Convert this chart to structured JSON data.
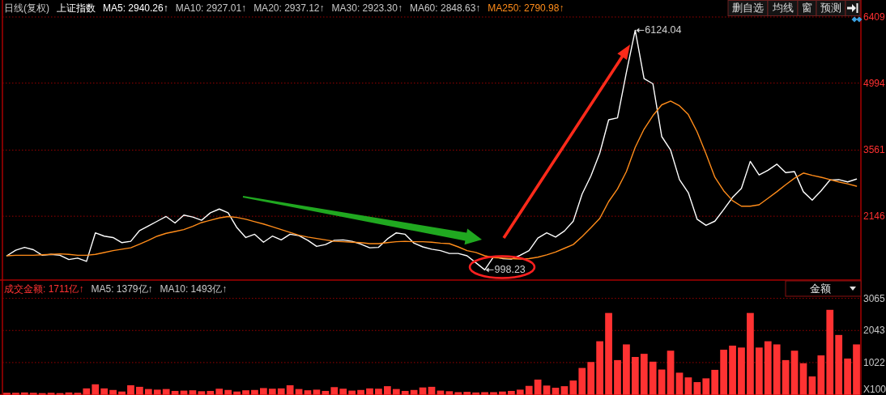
{
  "chart_data": [
    {
      "type": "line",
      "title": "日线(复权)",
      "subtitle": "上证指数",
      "categories": [
        null,
        null,
        null,
        null,
        null,
        null,
        null,
        null,
        null,
        null,
        null,
        null,
        null,
        null,
        null,
        null,
        null,
        null,
        null,
        null,
        null,
        null,
        null,
        null,
        null,
        null,
        null,
        null,
        null,
        null,
        null,
        null,
        null,
        null,
        null,
        null,
        null,
        null,
        null,
        null,
        null,
        null,
        null,
        null,
        null,
        null,
        null,
        null,
        null,
        null,
        null,
        null,
        null,
        null,
        null,
        null,
        null,
        null,
        null,
        null,
        null,
        null,
        null,
        null,
        null,
        null,
        null,
        null,
        null,
        null,
        null,
        null,
        null,
        null,
        null,
        null,
        null,
        null,
        null,
        null,
        null,
        null,
        null,
        null,
        null,
        null,
        null,
        null,
        null,
        null,
        null,
        null,
        null,
        null,
        null,
        null,
        null
      ],
      "series": [
        {
          "name": "MA5: 2940.26↑",
          "color": "#ffffff",
          "values": [
            1300,
            1420,
            1480,
            1430,
            1310,
            1330,
            1310,
            1220,
            1250,
            1180,
            1790,
            1720,
            1690,
            1580,
            1610,
            1840,
            1940,
            2040,
            2140,
            2000,
            2170,
            2130,
            2060,
            2220,
            2300,
            2220,
            1900,
            1690,
            1760,
            1590,
            1720,
            1640,
            1760,
            1730,
            1630,
            1500,
            1540,
            1630,
            1640,
            1610,
            1550,
            1470,
            1480,
            1660,
            1790,
            1760,
            1570,
            1490,
            1440,
            1410,
            1350,
            1350,
            1300,
            1150,
            998.23,
            1280,
            1240,
            1230,
            1310,
            1410,
            1680,
            1790,
            1700,
            1830,
            2040,
            2620,
            3010,
            3500,
            4210,
            4250,
            5220,
            6124.04,
            5090,
            4980,
            3850,
            3560,
            2930,
            2650,
            2080,
            1950,
            2040,
            2290,
            2550,
            2740,
            3320,
            3030,
            3130,
            3260,
            3080,
            3100,
            2670,
            2490,
            2690,
            2920,
            2930,
            2880,
            2940
          ],
          "value_labels": [
            null,
            null,
            null,
            null,
            null,
            null,
            null,
            null,
            null,
            null,
            null,
            null,
            null,
            null,
            null,
            null,
            null,
            null,
            null,
            null,
            null,
            null,
            null,
            null,
            null,
            null,
            null,
            null,
            null,
            null,
            null,
            null,
            null,
            null,
            null,
            null,
            null,
            null,
            null,
            null,
            null,
            null,
            null,
            null,
            null,
            null,
            null,
            null,
            null,
            null,
            null,
            null,
            null,
            null,
            "998.23",
            null,
            null,
            null,
            null,
            null,
            null,
            null,
            null,
            null,
            null,
            null,
            null,
            null,
            null,
            null,
            null,
            "6124.04",
            null,
            null,
            null,
            null,
            null,
            null,
            null,
            null,
            null,
            null,
            null,
            null,
            null,
            null,
            null,
            null,
            null,
            null,
            null,
            null,
            null,
            null,
            null,
            null,
            null
          ]
        },
        {
          "name": "MA250: 2790.98↑",
          "color": "#ff8c1a",
          "values": [
            1300,
            1310,
            1310,
            1310,
            1320,
            1330,
            1340,
            1330,
            1310,
            1310,
            1330,
            1370,
            1410,
            1440,
            1470,
            1550,
            1630,
            1720,
            1780,
            1820,
            1860,
            1930,
            2010,
            2060,
            2110,
            2140,
            2120,
            2080,
            2030,
            1980,
            1920,
            1860,
            1800,
            1740,
            1700,
            1670,
            1640,
            1610,
            1600,
            1590,
            1580,
            1560,
            1560,
            1580,
            1600,
            1610,
            1600,
            1600,
            1590,
            1570,
            1560,
            1490,
            1410,
            1370,
            1300,
            1260,
            1250,
            1240,
            1230,
            1240,
            1270,
            1320,
            1380,
            1460,
            1540,
            1710,
            1900,
            2100,
            2460,
            2730,
            3100,
            3620,
            4010,
            4300,
            4530,
            4610,
            4510,
            4320,
            3950,
            3480,
            2980,
            2690,
            2480,
            2360,
            2360,
            2390,
            2530,
            2670,
            2820,
            2960,
            3070,
            3020,
            2980,
            2930,
            2880,
            2840,
            2790
          ]
        }
      ],
      "annotations": [
        "MA10: 2927.01↑",
        "MA20: 2937.12↑",
        "MA30: 2923.30↑",
        "MA60: 2848.63↑"
      ],
      "ylim": [
        780,
        6409
      ],
      "yticks": [
        2146,
        3561,
        4994,
        6409
      ],
      "grid": "y",
      "legend": "top left",
      "tick_labels": "y"
    },
    {
      "type": "bar",
      "categories": [
        null,
        null,
        null,
        null,
        null,
        null,
        null,
        null,
        null,
        null,
        null,
        null,
        null,
        null,
        null,
        null,
        null,
        null,
        null,
        null,
        null,
        null,
        null,
        null,
        null,
        null,
        null,
        null,
        null,
        null,
        null,
        null,
        null,
        null,
        null,
        null,
        null,
        null,
        null,
        null,
        null,
        null,
        null,
        null,
        null,
        null,
        null,
        null,
        null,
        null,
        null,
        null,
        null,
        null,
        null,
        null,
        null,
        null,
        null,
        null,
        null,
        null,
        null,
        null,
        null,
        null,
        null,
        null,
        null,
        null,
        null,
        null,
        null,
        null,
        null,
        null,
        null,
        null,
        null,
        null,
        null,
        null,
        null,
        null,
        null,
        null,
        null,
        null,
        null,
        null,
        null,
        null,
        null,
        null,
        null,
        null,
        null
      ],
      "series": [
        {
          "name": "成交金额: 1711亿↑",
          "color": "#ff3232",
          "values": [
            60,
            60,
            70,
            60,
            50,
            60,
            50,
            70,
            60,
            200,
            330,
            200,
            150,
            100,
            300,
            250,
            180,
            160,
            180,
            120,
            130,
            140,
            110,
            120,
            190,
            150,
            100,
            140,
            150,
            210,
            190,
            200,
            300,
            180,
            140,
            160,
            120,
            240,
            190,
            130,
            150,
            200,
            190,
            270,
            180,
            120,
            150,
            230,
            250,
            130,
            110,
            80,
            90,
            70,
            80,
            80,
            100,
            120,
            160,
            280,
            480,
            290,
            220,
            270,
            450,
            850,
            1040,
            1700,
            2600,
            1100,
            1600,
            1200,
            1300,
            1050,
            800,
            1400,
            700,
            550,
            400,
            520,
            790,
            1430,
            1560,
            1500,
            2600,
            1500,
            1700,
            1600,
            1100,
            1400,
            1000,
            580,
            1250,
            2700,
            1900,
            1150,
            1600
          ]
        }
      ],
      "annotations": [
        "MA5: 1379亿↑",
        "MA10: 1493亿↑"
      ],
      "ylabel": "X100",
      "ylim": [
        0,
        3065
      ],
      "yticks": [
        1022,
        2043,
        3065
      ],
      "grid": "y",
      "legend": "top left",
      "tick_labels": "y"
    },
    {
      "type": "other",
      "annotations": [
        "删自选",
        "均线",
        "窗",
        "预测"
      ]
    },
    {
      "type": "other",
      "annotations": [
        "金额"
      ]
    }
  ]
}
